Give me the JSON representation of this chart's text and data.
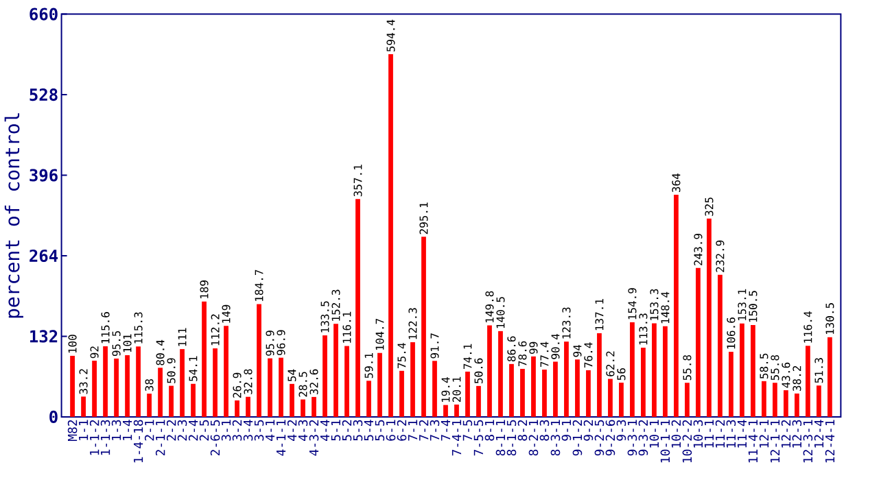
{
  "chart_data": {
    "type": "bar",
    "ylabel": "percent of control",
    "categories": [
      "M82",
      "1-1",
      "1-1-2",
      "1-1-3",
      "1-3",
      "1-4",
      "1-4-18",
      "2-1",
      "2-1-1",
      "2-2",
      "2-3",
      "2-4",
      "2-5",
      "2-6-5",
      "3-1",
      "3-2",
      "3-4",
      "3-5",
      "4-1",
      "4-1-1",
      "4-2",
      "4-3",
      "4-3-2",
      "4-4",
      "5-1",
      "5-2",
      "5-3",
      "5-4",
      "5-5",
      "6-1",
      "6-2",
      "7-1",
      "7-2",
      "7-3",
      "7-4",
      "7-4-1",
      "7-5",
      "7-5-5",
      "8-1",
      "8-1-1",
      "8-1-5",
      "8-2",
      "8-2-1",
      "8-3",
      "8-3-1",
      "9-1",
      "9-1-2",
      "9-2",
      "9-2-5",
      "9-2-6",
      "9-3",
      "9-3-1",
      "9-3-2",
      "10-1",
      "10-1-1",
      "10-2",
      "10-2-2",
      "10-3",
      "11-1",
      "11-2",
      "11-3",
      "11-4",
      "11-4-1",
      "12-1",
      "12-1-1",
      "12-2",
      "12-3",
      "12-3-1",
      "12-4",
      "12-4-1"
    ],
    "values": [
      100,
      33.2,
      92,
      115.6,
      95.5,
      101,
      115.3,
      38,
      80.4,
      50.9,
      111,
      54.1,
      189,
      112.2,
      149,
      26.9,
      32.8,
      184.7,
      95.9,
      96.9,
      54,
      28.5,
      32.6,
      133.5,
      152.3,
      116.1,
      357.1,
      59.1,
      104.7,
      594.4,
      75.4,
      122.3,
      295.1,
      91.7,
      19.4,
      20.1,
      74.1,
      50.6,
      149.8,
      140.5,
      86.6,
      78.6,
      99,
      77.4,
      90.4,
      123.3,
      94,
      76.4,
      137.1,
      62.2,
      56,
      154.9,
      113.3,
      153.3,
      148.4,
      364,
      55.8,
      243.9,
      325,
      232.9,
      106.6,
      153.1,
      150.5,
      58.5,
      55.8,
      43.6,
      38.2,
      116.4,
      51.3,
      130.5
    ],
    "color": "#ff0000",
    "ylim": [
      0,
      660
    ],
    "yticks": [
      0,
      132,
      264,
      396,
      528,
      660
    ],
    "data_labels": true
  }
}
